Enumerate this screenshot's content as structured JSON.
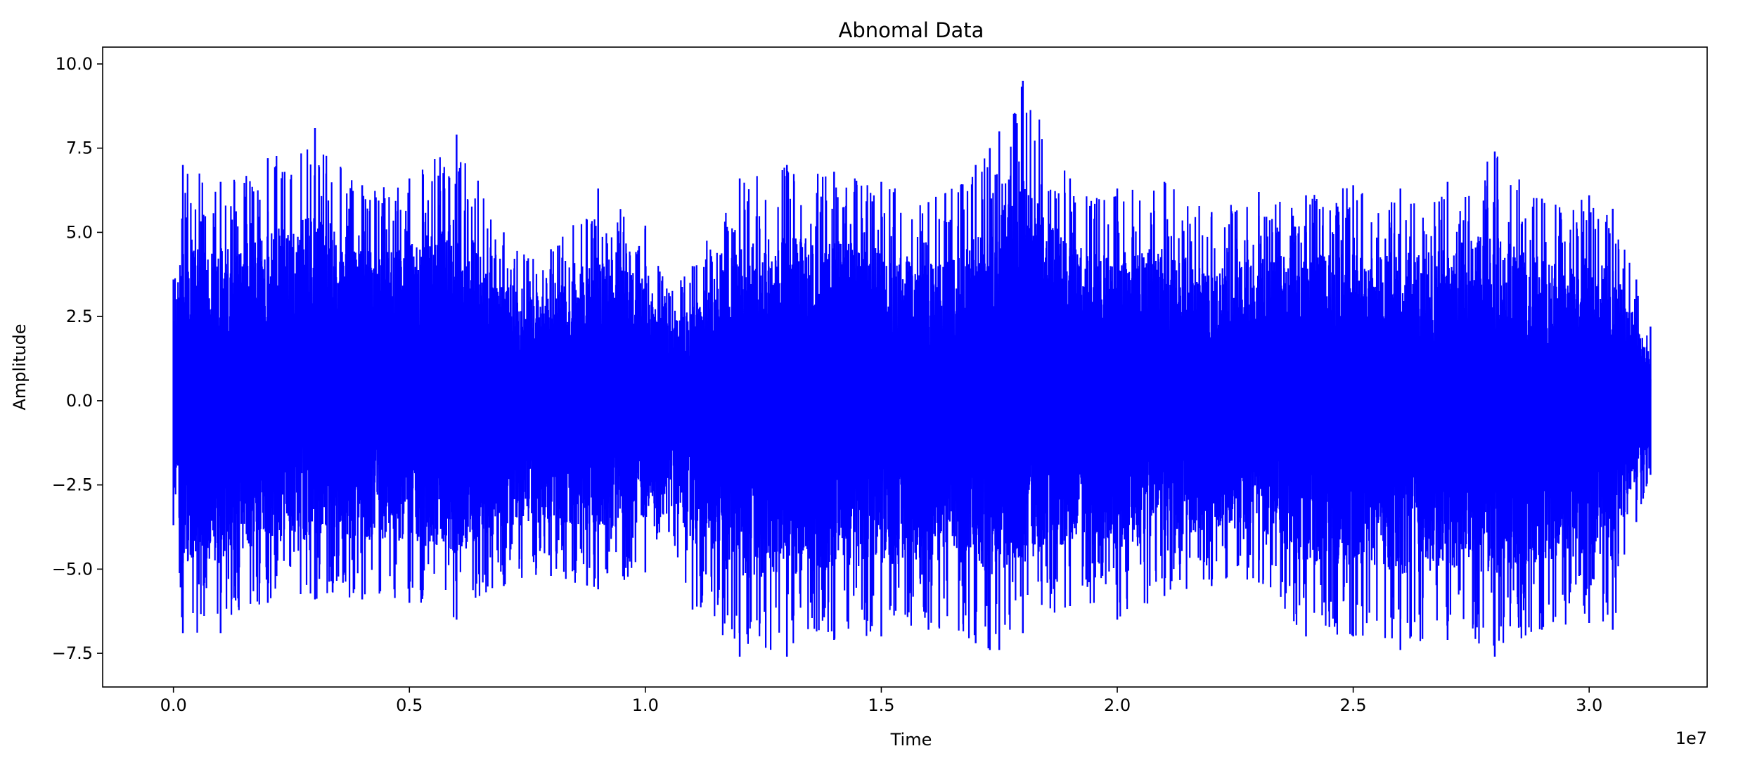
{
  "chart_data": {
    "type": "line",
    "title": "Abnomal Data",
    "xlabel": "Time",
    "ylabel": "Amplitude",
    "x_offset_text": "1e7",
    "xlim": [
      -0.15,
      3.25
    ],
    "ylim": [
      -8.5,
      10.5
    ],
    "x_ticks": [
      0.0,
      0.5,
      1.0,
      1.5,
      2.0,
      2.5,
      3.0
    ],
    "x_tick_labels": [
      "0.0",
      "0.5",
      "1.0",
      "1.5",
      "2.0",
      "2.5",
      "3.0"
    ],
    "y_ticks": [
      -7.5,
      -5.0,
      -2.5,
      0.0,
      2.5,
      5.0,
      7.5,
      10.0
    ],
    "y_tick_labels": [
      "−7.5",
      "−5.0",
      "−2.5",
      "0.0",
      "2.5",
      "5.0",
      "7.5",
      "10.0"
    ],
    "grid": false,
    "series": [
      {
        "color": "#0000ff",
        "x_range": [
          0.0,
          3.13
        ],
        "envelope": {
          "x": [
            0.0,
            0.02,
            0.1,
            0.2,
            0.3,
            0.4,
            0.5,
            0.6,
            0.7,
            0.8,
            0.9,
            1.0,
            1.05,
            1.1,
            1.2,
            1.3,
            1.4,
            1.5,
            1.6,
            1.7,
            1.73,
            1.75,
            1.8,
            1.9,
            2.0,
            2.1,
            2.2,
            2.3,
            2.4,
            2.5,
            2.6,
            2.7,
            2.8,
            2.9,
            3.0,
            3.05,
            3.1,
            3.13
          ],
          "upper": [
            3.6,
            7.0,
            6.5,
            7.2,
            8.1,
            6.4,
            6.6,
            7.9,
            5.0,
            4.5,
            6.3,
            5.2,
            3.2,
            4.0,
            6.6,
            7.0,
            6.8,
            6.5,
            5.9,
            7.0,
            7.5,
            8.0,
            9.5,
            6.6,
            6.3,
            6.5,
            5.6,
            6.2,
            6.1,
            6.4,
            6.3,
            6.5,
            7.4,
            6.0,
            6.1,
            5.7,
            3.6,
            2.2
          ],
          "lower": [
            -3.7,
            -6.9,
            -6.9,
            -6.0,
            -5.9,
            -5.9,
            -6.0,
            -6.5,
            -5.5,
            -5.2,
            -5.6,
            -5.1,
            -3.9,
            -6.2,
            -7.6,
            -7.6,
            -7.1,
            -7.0,
            -6.8,
            -7.2,
            -7.4,
            -7.4,
            -6.9,
            -6.1,
            -6.5,
            -5.8,
            -5.5,
            -5.4,
            -7.0,
            -7.0,
            -7.4,
            -7.1,
            -7.6,
            -6.8,
            -6.6,
            -6.8,
            -3.6,
            -2.2
          ]
        }
      }
    ]
  }
}
